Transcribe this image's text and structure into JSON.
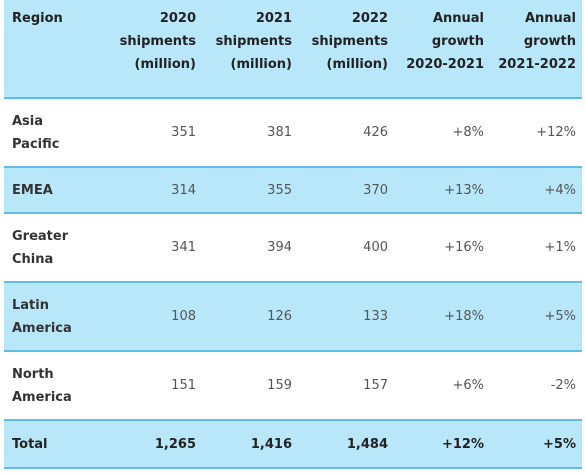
{
  "header": {
    "region": "Region",
    "c2020": [
      "2020",
      "shipments",
      "(million)"
    ],
    "c2021": [
      "2021",
      "shipments",
      "(million)"
    ],
    "c2022": [
      "2022",
      "shipments",
      "(million)"
    ],
    "g2021": [
      "Annual",
      "growth",
      "2020-2021"
    ],
    "g2022": [
      "Annual",
      "growth",
      "2021-2022"
    ]
  },
  "rows": [
    {
      "region": [
        "Asia",
        "Pacific"
      ],
      "s2020": "351",
      "s2021": "381",
      "s2022": "426",
      "g2021": "+8%",
      "g2022": "+12%"
    },
    {
      "region": [
        "EMEA"
      ],
      "s2020": "314",
      "s2021": "355",
      "s2022": "370",
      "g2021": "+13%",
      "g2022": "+4%"
    },
    {
      "region": [
        "Greater",
        "China"
      ],
      "s2020": "341",
      "s2021": "394",
      "s2022": "400",
      "g2021": "+16%",
      "g2022": "+1%"
    },
    {
      "region": [
        "Latin",
        "America"
      ],
      "s2020": "108",
      "s2021": "126",
      "s2022": "133",
      "g2021": "+18%",
      "g2022": "+5%"
    },
    {
      "region": [
        "North",
        "America"
      ],
      "s2020": "151",
      "s2021": "159",
      "s2022": "157",
      "g2021": "+6%",
      "g2022": "-2%"
    }
  ],
  "total": {
    "region": "Total",
    "s2020": "1,265",
    "s2021": "1,416",
    "s2022": "1,484",
    "g2021": "+12%",
    "g2022": "+5%"
  },
  "colors": {
    "header_bg": "#b9e7fa",
    "alt_row_bg": "#b9e7fa",
    "rule": "#5fbde8"
  }
}
